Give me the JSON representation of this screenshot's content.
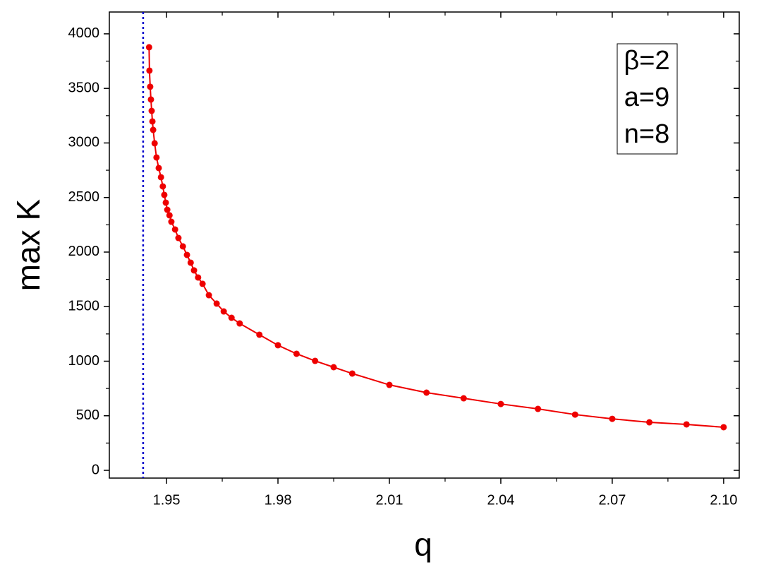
{
  "chart_data": {
    "type": "line",
    "x_label": "q",
    "y_label": "max K",
    "annotations": [
      "β=2",
      "a=9",
      "n=8"
    ],
    "reference_x": 1.9437,
    "reference_color": "#0000cc",
    "series": [
      {
        "color": "#ee0000",
        "x": [
          1.9453,
          1.9454,
          1.9456,
          1.9458,
          1.946,
          1.9462,
          1.9464,
          1.9468,
          1.9473,
          1.9479,
          1.9485,
          1.949,
          1.9494,
          1.9498,
          1.9502,
          1.9508,
          1.9513,
          1.9523,
          1.9532,
          1.9544,
          1.9555,
          1.9565,
          1.9574,
          1.9585,
          1.9597,
          1.9614,
          1.9635,
          1.9654,
          1.9675,
          1.9697,
          1.975,
          1.98,
          1.985,
          1.99,
          1.995,
          2.0,
          2.01,
          2.02,
          2.03,
          2.04,
          2.05,
          2.06,
          2.07,
          2.08,
          2.09,
          2.1
        ],
        "values": [
          3877,
          3663,
          3515,
          3398,
          3294,
          3197,
          3120,
          2997,
          2867,
          2770,
          2686,
          2602,
          2524,
          2453,
          2388,
          2337,
          2278,
          2207,
          2129,
          2052,
          1974,
          1903,
          1832,
          1767,
          1709,
          1605,
          1528,
          1456,
          1398,
          1346,
          1243,
          1146,
          1068,
          1003,
          945,
          887,
          783,
          712,
          660,
          608,
          563,
          511,
          472,
          440,
          421,
          395
        ]
      }
    ],
    "xlim": [
      1.9346,
      2.1042
    ],
    "ylim": [
      -71,
      4200
    ],
    "xticks": [
      1.95,
      1.98,
      2.01,
      2.04,
      2.07,
      {
        "value": 2.1,
        "label": "2.10"
      }
    ],
    "yticks": [
      0,
      500,
      1000,
      1500,
      2000,
      2500,
      3000,
      3500,
      4000
    ],
    "xminorticks": [
      1.965,
      1.995,
      2.025,
      2.055,
      2.085
    ],
    "yminorticks": [
      250,
      750,
      1250,
      1750,
      2250,
      2750,
      3250,
      3750
    ]
  }
}
